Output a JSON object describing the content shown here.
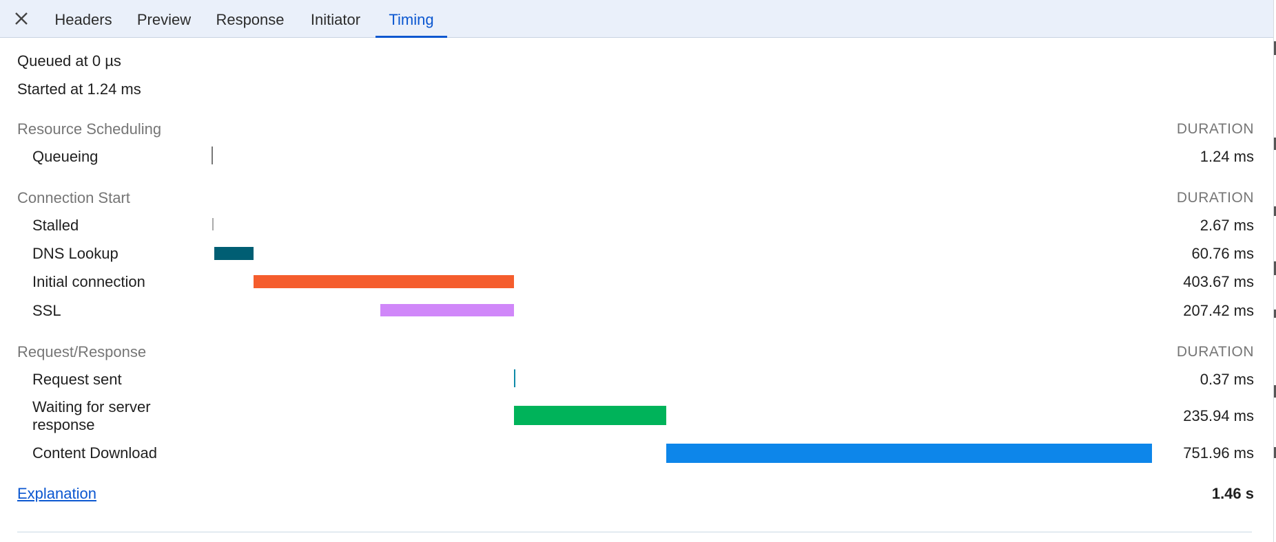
{
  "tabs": [
    {
      "label": "Headers"
    },
    {
      "label": "Preview"
    },
    {
      "label": "Response"
    },
    {
      "label": "Initiator"
    },
    {
      "label": "Timing"
    }
  ],
  "active_tab": "Timing",
  "summary": {
    "queued": "Queued at 0 µs",
    "started": "Started at 1.24 ms"
  },
  "duration_header": "DURATION",
  "sections": {
    "resource_scheduling": "Resource Scheduling",
    "connection_start": "Connection Start",
    "request_response": "Request/Response"
  },
  "timeline_total_ms": 1460,
  "rows": [
    {
      "label": "Queueing",
      "duration": "1.24 ms",
      "start_ms": 0,
      "dur_ms": 1.24,
      "color": "#777777",
      "style": "line"
    },
    {
      "label": "Stalled",
      "duration": "2.67 ms",
      "start_ms": 1.24,
      "dur_ms": 2.67,
      "color": "#aaaaaa",
      "style": "line"
    },
    {
      "label": "DNS Lookup",
      "duration": "60.76 ms",
      "start_ms": 3.91,
      "dur_ms": 60.76,
      "color": "#005e73",
      "style": "bar"
    },
    {
      "label": "Initial connection",
      "duration": "403.67 ms",
      "start_ms": 64.67,
      "dur_ms": 403.67,
      "color": "#f55d2d",
      "style": "bar"
    },
    {
      "label": "SSL",
      "duration": "207.42 ms",
      "start_ms": 260.92,
      "dur_ms": 207.42,
      "color": "#d087f9",
      "style": "bar"
    },
    {
      "label": "Request sent",
      "duration": "0.37 ms",
      "start_ms": 468.34,
      "dur_ms": 0.37,
      "color": "#0e8aa8",
      "style": "line"
    },
    {
      "label": "Waiting for server response",
      "duration": "235.94 ms",
      "start_ms": 468.71,
      "dur_ms": 235.94,
      "color": "#00b35a",
      "style": "bar"
    },
    {
      "label": "Content Download",
      "duration": "751.96 ms",
      "start_ms": 704.65,
      "dur_ms": 751.96,
      "color": "#0d86ea",
      "style": "bar"
    }
  ],
  "footer": {
    "explanation": "Explanation",
    "total": "1.46 s"
  }
}
